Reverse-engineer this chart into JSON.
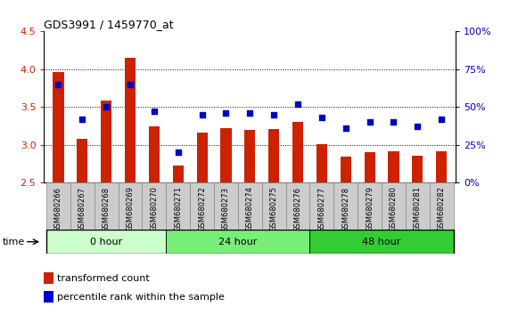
{
  "title": "GDS3991 / 1459770_at",
  "samples": [
    "GSM680266",
    "GSM680267",
    "GSM680268",
    "GSM680269",
    "GSM680270",
    "GSM680271",
    "GSM680272",
    "GSM680273",
    "GSM680274",
    "GSM680275",
    "GSM680276",
    "GSM680277",
    "GSM680278",
    "GSM680279",
    "GSM680280",
    "GSM680281",
    "GSM680282"
  ],
  "transformed_count": [
    3.96,
    3.08,
    3.59,
    4.15,
    3.25,
    2.73,
    3.16,
    3.22,
    3.2,
    3.21,
    3.3,
    3.01,
    2.85,
    2.9,
    2.91,
    2.86,
    2.92
  ],
  "percentile_rank": [
    65,
    42,
    50,
    65,
    47,
    20,
    45,
    46,
    46,
    45,
    52,
    43,
    36,
    40,
    40,
    37,
    42
  ],
  "groups": [
    {
      "label": "0 hour",
      "start": 0,
      "end": 5,
      "color": "#ccffcc"
    },
    {
      "label": "24 hour",
      "start": 5,
      "end": 11,
      "color": "#77ee77"
    },
    {
      "label": "48 hour",
      "start": 11,
      "end": 17,
      "color": "#33cc33"
    }
  ],
  "ylim_left": [
    2.5,
    4.5
  ],
  "ylim_right": [
    0,
    100
  ],
  "yticks_left": [
    2.5,
    3.0,
    3.5,
    4.0,
    4.5
  ],
  "yticks_right": [
    0,
    25,
    50,
    75,
    100
  ],
  "bar_color": "#cc2200",
  "scatter_color": "#0000cc",
  "bar_bottom": 2.5,
  "bg_color": "#ffffff",
  "ylabel_left_color": "#cc2200",
  "ylabel_right_color": "#0000cc",
  "tick_label_bg": "#cccccc",
  "time_label": "time",
  "legend_bar_label": "transformed count",
  "legend_scatter_label": "percentile rank within the sample"
}
